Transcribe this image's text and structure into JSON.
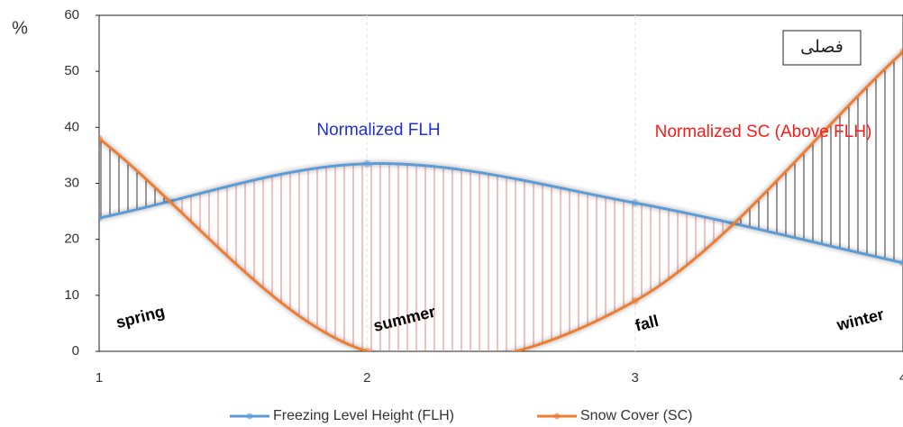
{
  "chart_data": {
    "type": "line",
    "y_label": "%",
    "x": [
      1,
      2,
      3,
      4
    ],
    "xlim": [
      1,
      4
    ],
    "xticks": [
      1,
      2,
      3,
      4
    ],
    "ylim": [
      0,
      60
    ],
    "yticks": [
      0,
      10,
      20,
      30,
      40,
      50,
      60
    ],
    "grid": "x",
    "series": [
      {
        "name": "Freezing Level Height (FLH)",
        "color": "#5b9bd5",
        "values": [
          23.8,
          33.5,
          26.5,
          15.8
        ]
      },
      {
        "name": "Snow Cover (SC)",
        "color": "#ed7d31",
        "values": [
          38,
          0,
          9,
          53.5
        ]
      }
    ],
    "annotations": [
      "Normalized FLH",
      "Normalized SC (Above FLH)",
      "فصلی",
      "spring",
      "summer",
      "fall",
      "winter"
    ],
    "hatch_colors": [
      "#f08080",
      "#333333"
    ],
    "legend": "bottom"
  }
}
